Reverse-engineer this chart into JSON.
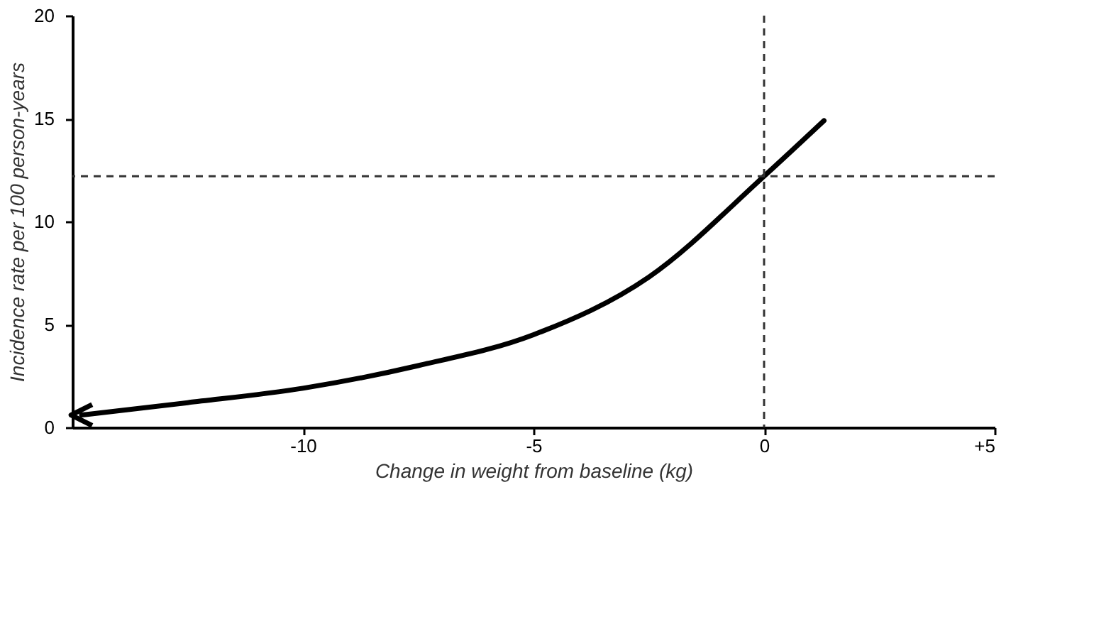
{
  "chart_data": {
    "type": "line",
    "xlabel": "Change in weight from baseline (kg)",
    "ylabel": "Incidence rate per 100 person-years",
    "x": [
      -14.8,
      -12.5,
      -10,
      -7.5,
      -5,
      -2.5,
      0,
      1.3
    ],
    "series": [
      {
        "color": "#000000",
        "values": [
          0.6,
          1.2,
          1.9,
          3.0,
          4.5,
          7.3,
          12.2,
          14.9
        ]
      }
    ],
    "xlim": [
      -15,
      5
    ],
    "xticks": [
      -10,
      -5,
      0,
      {
        "value": 5,
        "label": "+5"
      }
    ],
    "ylim": [
      0,
      20
    ],
    "yticks": [
      0,
      5,
      10,
      15,
      20
    ],
    "ref_lines": [
      {
        "axis": "x",
        "value": 0,
        "line_style": "dashed"
      },
      {
        "axis": "y",
        "value": 12.2,
        "line_style": "dashed"
      }
    ],
    "grid": false,
    "marker": "none",
    "line_style": "solid"
  }
}
